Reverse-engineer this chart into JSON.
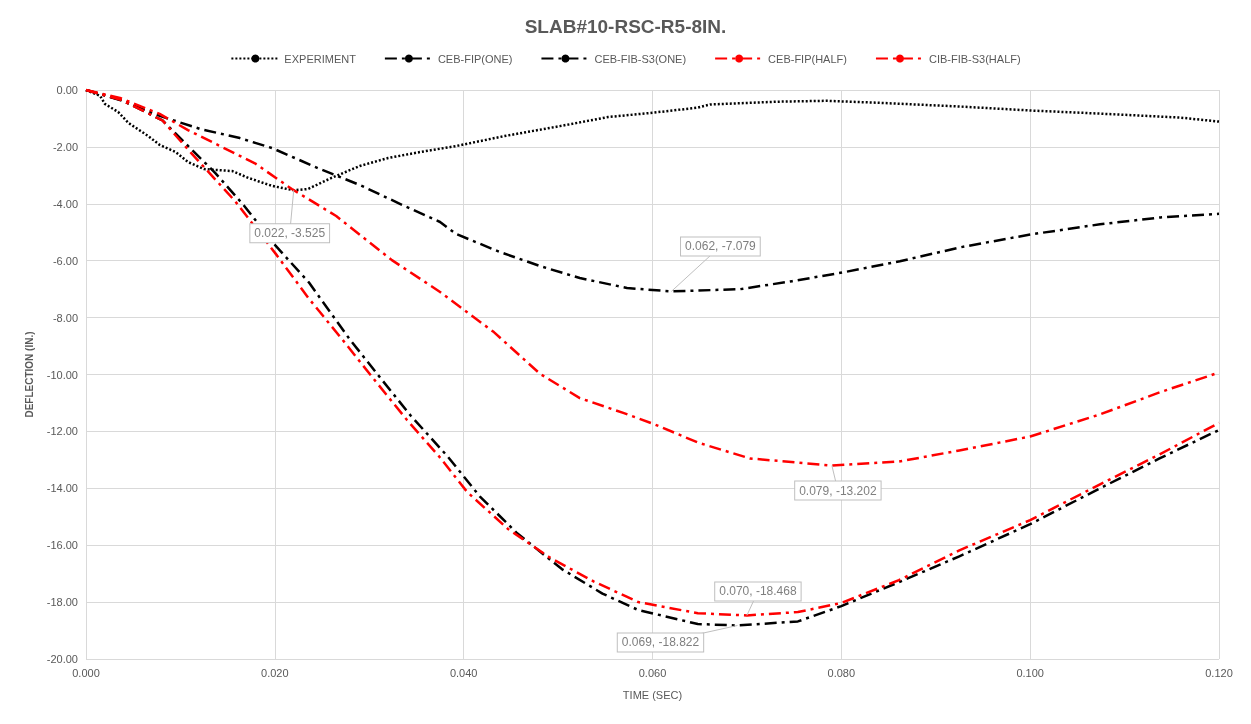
{
  "chart_data": {
    "type": "line",
    "title": "SLAB#10-RSC-R5-8IN.",
    "xlabel": "TIME (SEC)",
    "ylabel": "DEFLECTION (IN.)",
    "xlim": [
      0,
      0.12
    ],
    "xticks": [
      {
        "value": 0,
        "label": "0.000"
      },
      {
        "value": 0.02,
        "label": "0.020"
      },
      {
        "value": 0.04,
        "label": "0.040"
      },
      {
        "value": 0.06,
        "label": "0.060"
      },
      {
        "value": 0.08,
        "label": "0.080"
      },
      {
        "value": 0.1,
        "label": "0.100"
      },
      {
        "value": 0.12,
        "label": "0.120"
      }
    ],
    "ylim": [
      -20,
      0
    ],
    "yticks": [
      {
        "value": -20,
        "label": "-20.00"
      },
      {
        "value": -18,
        "label": "-18.00"
      },
      {
        "value": -16,
        "label": "-16.00"
      },
      {
        "value": -14,
        "label": "-14.00"
      },
      {
        "value": -12,
        "label": "-12.00"
      },
      {
        "value": -10,
        "label": "-10.00"
      },
      {
        "value": -8,
        "label": "-8.00"
      },
      {
        "value": -6,
        "label": "-6.00"
      },
      {
        "value": -4,
        "label": "-4.00"
      },
      {
        "value": -2,
        "label": "-2.00"
      },
      {
        "value": 0,
        "label": "0.00"
      }
    ],
    "grid": true,
    "legend": "top",
    "marker": "none",
    "series": [
      {
        "name": "EXPERIMENT",
        "color": "#000000",
        "line_style": "dotted",
        "x": [
          0,
          0.0015,
          0.002,
          0.0034,
          0.0045,
          0.0066,
          0.0078,
          0.0095,
          0.0108,
          0.0125,
          0.0155,
          0.0172,
          0.0197,
          0.022,
          0.0235,
          0.026,
          0.029,
          0.032,
          0.0354,
          0.0392,
          0.0443,
          0.0502,
          0.0553,
          0.06,
          0.0648,
          0.0661,
          0.0733,
          0.0784,
          0.084,
          0.0925,
          0.1,
          0.1074,
          0.1159,
          0.12
        ],
        "values": [
          0,
          -0.21,
          -0.49,
          -0.77,
          -1.16,
          -1.62,
          -1.93,
          -2.18,
          -2.53,
          -2.78,
          -2.85,
          -3.09,
          -3.37,
          -3.525,
          -3.48,
          -3.09,
          -2.67,
          -2.39,
          -2.18,
          -1.97,
          -1.62,
          -1.27,
          -0.95,
          -0.8,
          -0.62,
          -0.51,
          -0.41,
          -0.38,
          -0.45,
          -0.58,
          -0.72,
          -0.83,
          -0.97,
          -1.11
        ]
      },
      {
        "name": "CEB-FIP(ONE)",
        "color": "#000000",
        "line_style": "dashed",
        "x": [
          0,
          0.0036,
          0.0078,
          0.0121,
          0.0163,
          0.0197,
          0.0248,
          0.029,
          0.0333,
          0.0375,
          0.0392,
          0.0438,
          0.0481,
          0.0523,
          0.0573,
          0.062,
          0.0693,
          0.0748,
          0.0802,
          0.0862,
          0.0926,
          0.1,
          0.1074,
          0.1138,
          0.12
        ],
        "values": [
          0,
          -0.35,
          -0.91,
          -1.37,
          -1.69,
          -2.04,
          -2.78,
          -3.34,
          -4.01,
          -4.64,
          -5.06,
          -5.69,
          -6.19,
          -6.61,
          -6.96,
          -7.079,
          -7.0,
          -6.72,
          -6.41,
          -6.02,
          -5.53,
          -5.08,
          -4.72,
          -4.48,
          -4.35
        ]
      },
      {
        "name": "CEB-FIB-S3(ONE)",
        "color": "#000000",
        "line_style": "dashed",
        "x": [
          0,
          0.0038,
          0.0081,
          0.0111,
          0.0137,
          0.0167,
          0.0201,
          0.0236,
          0.0279,
          0.0313,
          0.0344,
          0.0383,
          0.0417,
          0.0456,
          0.0504,
          0.0547,
          0.0585,
          0.0648,
          0.069,
          0.0754,
          0.08,
          0.0861,
          0.0925,
          0.1,
          0.1074,
          0.1137,
          0.12
        ],
        "values": [
          0,
          -0.36,
          -1.07,
          -2.06,
          -2.92,
          -4.05,
          -5.48,
          -6.76,
          -8.75,
          -10.17,
          -11.45,
          -12.88,
          -14.28,
          -15.56,
          -16.84,
          -17.7,
          -18.28,
          -18.77,
          -18.822,
          -18.68,
          -18.14,
          -17.3,
          -16.39,
          -15.26,
          -14.0,
          -12.95,
          -11.95
        ]
      },
      {
        "name": "CEB-FIP(HALF)",
        "color": "#ff0000",
        "line_style": "dashed",
        "x": [
          0,
          0.0036,
          0.0078,
          0.0108,
          0.0142,
          0.018,
          0.0218,
          0.0265,
          0.0324,
          0.0375,
          0.0432,
          0.0481,
          0.0523,
          0.0569,
          0.0602,
          0.0648,
          0.0703,
          0.079,
          0.0861,
          0.0925,
          0.1,
          0.1074,
          0.1137,
          0.12
        ],
        "values": [
          0,
          -0.28,
          -0.84,
          -1.41,
          -1.97,
          -2.6,
          -3.48,
          -4.43,
          -5.98,
          -7.1,
          -8.51,
          -9.98,
          -10.83,
          -11.35,
          -11.75,
          -12.39,
          -12.95,
          -13.202,
          -13.06,
          -12.67,
          -12.18,
          -11.4,
          -10.63,
          -9.93
        ]
      },
      {
        "name": "CIB-FIB-S3(HALF)",
        "color": "#ff0000",
        "line_style": "dashed",
        "x": [
          0,
          0.0038,
          0.0081,
          0.0111,
          0.0158,
          0.0201,
          0.0236,
          0.0271,
          0.0305,
          0.034,
          0.0374,
          0.0404,
          0.0447,
          0.0491,
          0.0538,
          0.0585,
          0.0648,
          0.07,
          0.0754,
          0.08,
          0.0861,
          0.0925,
          0.1,
          0.1074,
          0.1137,
          0.12
        ],
        "values": [
          0,
          -0.36,
          -1.07,
          -2.2,
          -3.91,
          -5.76,
          -7.33,
          -8.75,
          -10.17,
          -11.6,
          -12.88,
          -14.14,
          -15.43,
          -16.43,
          -17.28,
          -18.0,
          -18.39,
          -18.468,
          -18.35,
          -18.03,
          -17.23,
          -16.18,
          -15.12,
          -13.86,
          -12.81,
          -11.7
        ]
      }
    ],
    "annotations": [
      {
        "text": "0.022, -3.525",
        "x": 0.022,
        "y": -3.525
      },
      {
        "text": "0.062, -7.079",
        "x": 0.062,
        "y": -7.079
      },
      {
        "text": "0.079, -13.202",
        "x": 0.079,
        "y": -13.202
      },
      {
        "text": "0.070, -18.468",
        "x": 0.07,
        "y": -18.468
      },
      {
        "text": "0.069, -18.822",
        "x": 0.069,
        "y": -18.822
      }
    ]
  }
}
